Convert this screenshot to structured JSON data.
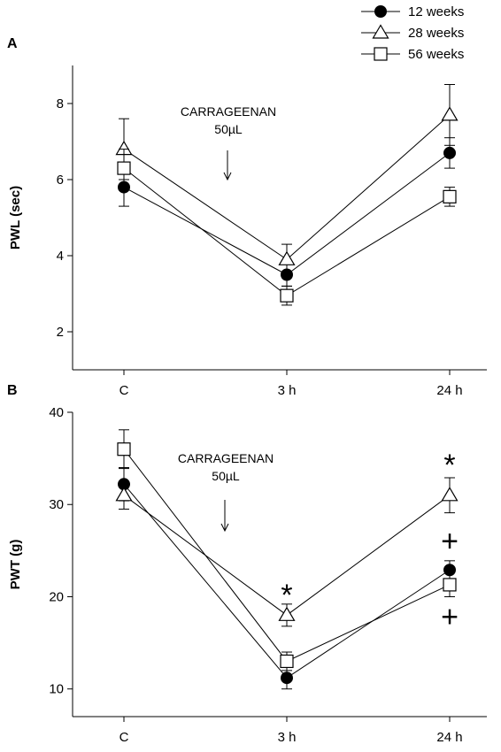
{
  "legend": [
    {
      "name": "12 weeks",
      "marker": "circle-filled"
    },
    {
      "name": "28 weeks",
      "marker": "triangle-open"
    },
    {
      "name": "56 weeks",
      "marker": "square-open"
    }
  ],
  "chart_data": [
    {
      "panel": "A",
      "type": "line",
      "xlabel": "",
      "ylabel": "PWL (sec)",
      "categories": [
        "C",
        "3 h",
        "24 h"
      ],
      "ylim": [
        1,
        9
      ],
      "yticks": [
        2,
        4,
        6,
        8
      ],
      "grid": false,
      "annotation": {
        "line1": "CARRAGEENAN",
        "line2": "50µL",
        "arrow": "down-arrow-icon"
      },
      "series": [
        {
          "name": "12 weeks",
          "values": [
            5.8,
            3.5,
            6.7
          ],
          "errors": [
            0.5,
            0.3,
            0.4
          ]
        },
        {
          "name": "28 weeks",
          "values": [
            6.8,
            3.9,
            7.7
          ],
          "errors": [
            0.8,
            0.4,
            0.8
          ]
        },
        {
          "name": "56 weeks",
          "values": [
            6.3,
            2.95,
            5.55
          ],
          "errors": [
            0.5,
            0.25,
            0.25
          ]
        }
      ],
      "significance_marks": []
    },
    {
      "panel": "B",
      "type": "line",
      "xlabel": "",
      "ylabel": "PWT (g)",
      "categories": [
        "C",
        "3 h",
        "24 h"
      ],
      "ylim": [
        7,
        40
      ],
      "yticks": [
        10,
        20,
        30,
        40
      ],
      "grid": false,
      "annotation": {
        "line1": "CARRAGEENAN",
        "line2": "50µL",
        "arrow": "down-arrow-icon"
      },
      "series": [
        {
          "name": "12 weeks",
          "values": [
            32.2,
            11.2,
            22.9
          ],
          "errors": [
            1.8,
            1.2,
            1.0
          ]
        },
        {
          "name": "28 weeks",
          "values": [
            31.0,
            18.0,
            31.0
          ],
          "errors": [
            1.5,
            1.2,
            1.9
          ]
        },
        {
          "name": "56 weeks",
          "values": [
            36.0,
            13.0,
            21.3
          ],
          "errors": [
            2.1,
            1.0,
            1.3
          ]
        }
      ],
      "significance_marks": [
        {
          "symbol": "*",
          "category": "3 h",
          "value": 21.2
        },
        {
          "symbol": "*",
          "category": "24 h",
          "value": 35.3
        },
        {
          "symbol": "+",
          "category": "24 h",
          "value": 26.0
        },
        {
          "symbol": "+",
          "category": "24 h",
          "value": 17.8
        }
      ]
    }
  ]
}
